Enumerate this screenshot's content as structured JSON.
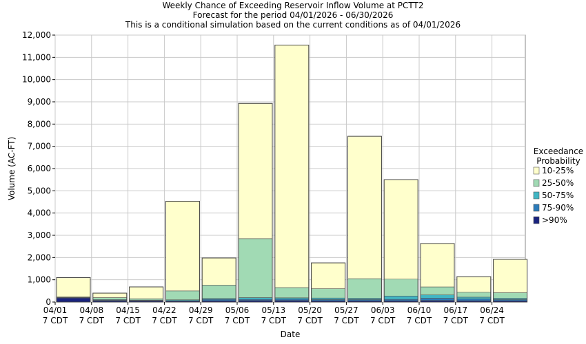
{
  "chart_data": {
    "type": "bar",
    "stacked": true,
    "title": "Weekly Chance of Exceeding Reservoir Inflow Volume at PCTT2",
    "subtitle": "Forecast for the period 04/01/2026 - 06/30/2026",
    "subtitle2": "This is a conditional simulation based on the current conditions as of 04/01/2026",
    "xlabel": "Date",
    "ylabel": "Volume (AC-FT)",
    "ylim": [
      0,
      12000
    ],
    "yticks": [
      0,
      1000,
      2000,
      3000,
      4000,
      5000,
      6000,
      7000,
      8000,
      9000,
      10000,
      11000,
      12000
    ],
    "ytick_labels": [
      "0",
      "1,000",
      "2,000",
      "3,000",
      "4,000",
      "5,000",
      "6,000",
      "7,000",
      "8,000",
      "9,000",
      "10,000",
      "11,000",
      "12,000"
    ],
    "categories": [
      "04/01",
      "04/08",
      "04/15",
      "04/22",
      "04/29",
      "05/06",
      "05/13",
      "05/20",
      "05/27",
      "06/03",
      "06/10",
      "06/17",
      "06/24"
    ],
    "category_sublabel": "7 CDT",
    "grid": true,
    "legend": {
      "title_line1": "Exceedance",
      "title_line2": "Probability",
      "placement": "right"
    },
    "series": [
      {
        "name": ">90%",
        "color": "#1a237e",
        "values": [
          180,
          60,
          50,
          40,
          60,
          70,
          70,
          60,
          60,
          60,
          70,
          60,
          60
        ]
      },
      {
        "name": "75-90%",
        "color": "#2b7bba",
        "values": [
          20,
          20,
          15,
          20,
          60,
          50,
          60,
          50,
          50,
          60,
          100,
          80,
          50
        ]
      },
      {
        "name": "50-75%",
        "color": "#41b6c4",
        "values": [
          10,
          30,
          25,
          40,
          40,
          80,
          60,
          70,
          60,
          150,
          150,
          80,
          60
        ]
      },
      {
        "name": "25-50%",
        "color": "#a1dab4",
        "values": [
          20,
          90,
          60,
          400,
          600,
          2650,
          460,
          420,
          880,
          760,
          360,
          220,
          250
        ]
      },
      {
        "name": "10-25%",
        "color": "#ffffcc",
        "values": [
          870,
          200,
          530,
          4030,
          1220,
          6080,
          10900,
          1160,
          6400,
          4470,
          1950,
          700,
          1500
        ]
      }
    ]
  }
}
